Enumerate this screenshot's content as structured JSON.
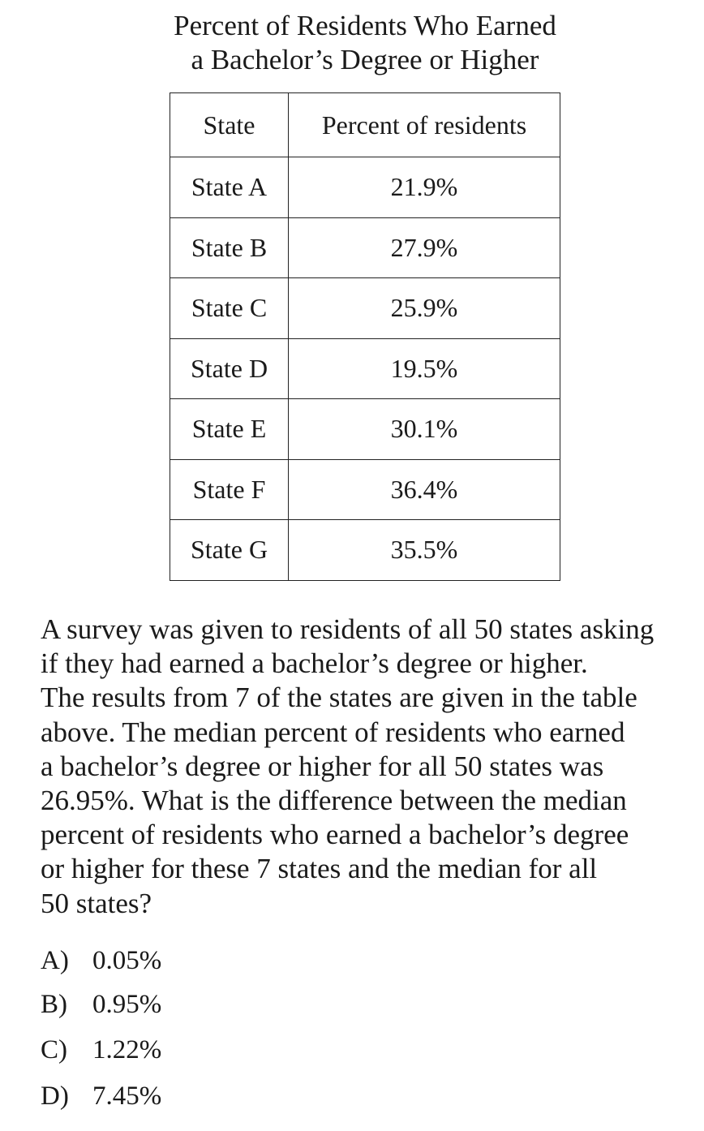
{
  "table": {
    "title_lines": [
      "Percent of Residents Who Earned",
      "a Bachelor’s Degree or Higher"
    ],
    "headers": [
      "State",
      "Percent of residents"
    ],
    "rows": [
      {
        "state": "State A",
        "percent": "21.9%"
      },
      {
        "state": "State B",
        "percent": "27.9%"
      },
      {
        "state": "State C",
        "percent": "25.9%"
      },
      {
        "state": "State D",
        "percent": "19.5%"
      },
      {
        "state": "State E",
        "percent": "30.1%"
      },
      {
        "state": "State F",
        "percent": "36.4%"
      },
      {
        "state": "State G",
        "percent": "35.5%"
      }
    ]
  },
  "question": {
    "lines": [
      "A survey was given to residents of all 50 states asking",
      "if they had earned a bachelor’s degree or higher.",
      "The results from 7 of the states are given in the table",
      "above.  The median percent of residents who earned",
      "a bachelor’s degree or higher for all 50 states was",
      "26.95%.  What is the difference between the median",
      "percent of residents who earned a bachelor’s degree",
      "or higher for these 7 states and the median for all",
      "50 states?"
    ]
  },
  "choices": [
    {
      "letter": "A)",
      "text": "0.05%"
    },
    {
      "letter": "B)",
      "text": "0.95%"
    },
    {
      "letter": "C)",
      "text": "1.22%"
    },
    {
      "letter": "D)",
      "text": "7.45%"
    }
  ]
}
